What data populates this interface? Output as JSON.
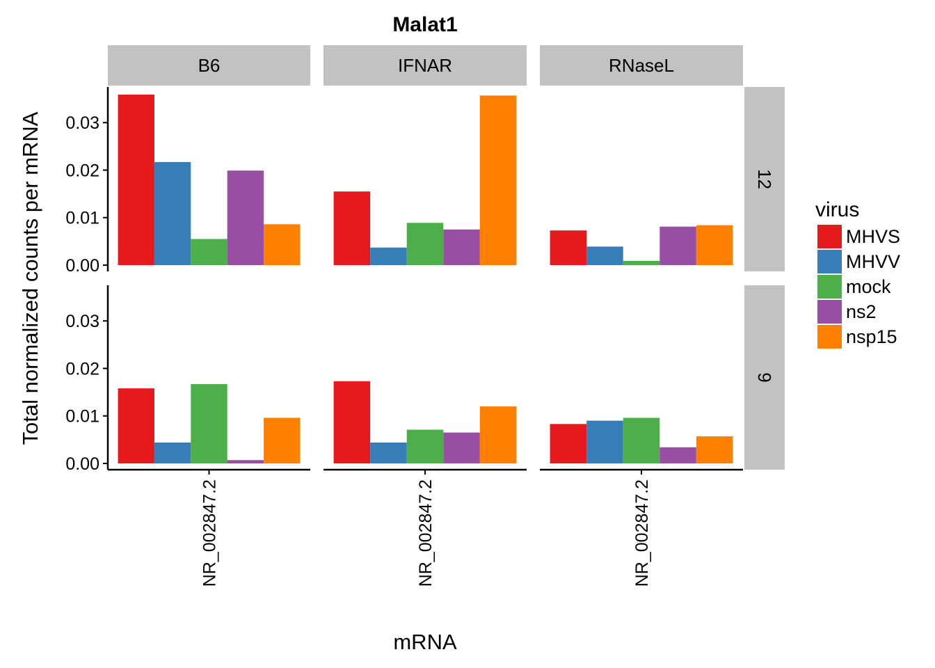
{
  "chart_data": {
    "type": "bar",
    "title": "Malat1",
    "xlabel": "mRNA",
    "ylabel": "Total normalized counts per mRNA",
    "ylim": [
      0,
      0.0375
    ],
    "yticks": [
      "0.00",
      "0.01",
      "0.02",
      "0.03"
    ],
    "ytick_values": [
      0,
      0.01,
      0.02,
      0.03
    ],
    "grid": false,
    "category": "NR_002847.2",
    "columns": [
      "B6",
      "IFNAR",
      "RNaseL"
    ],
    "rows": [
      "12",
      "9"
    ],
    "legend": {
      "title": "virus",
      "placement": "right",
      "entries": [
        {
          "name": "MHVS",
          "color": "#e41a1c"
        },
        {
          "name": "MHVV",
          "color": "#377eb8"
        },
        {
          "name": "mock",
          "color": "#4daf4a"
        },
        {
          "name": "ns2",
          "color": "#984ea3"
        },
        {
          "name": "nsp15",
          "color": "#ff7f00"
        }
      ]
    },
    "series_order": [
      "MHVS",
      "MHVV",
      "mock",
      "ns2",
      "nsp15"
    ],
    "panels": [
      {
        "column": "B6",
        "row": "12",
        "values": [
          0.0359,
          0.0217,
          0.0055,
          0.0199,
          0.0086
        ]
      },
      {
        "column": "IFNAR",
        "row": "12",
        "values": [
          0.0155,
          0.0037,
          0.0089,
          0.0075,
          0.0357
        ]
      },
      {
        "column": "RNaseL",
        "row": "12",
        "values": [
          0.0073,
          0.0039,
          0.0009,
          0.0081,
          0.0084
        ]
      },
      {
        "column": "B6",
        "row": "9",
        "values": [
          0.0158,
          0.0044,
          0.0167,
          0.0007,
          0.0096
        ]
      },
      {
        "column": "IFNAR",
        "row": "9",
        "values": [
          0.0173,
          0.0044,
          0.0071,
          0.0065,
          0.012
        ]
      },
      {
        "column": "RNaseL",
        "row": "9",
        "values": [
          0.0083,
          0.009,
          0.0096,
          0.0034,
          0.0057
        ]
      }
    ]
  }
}
